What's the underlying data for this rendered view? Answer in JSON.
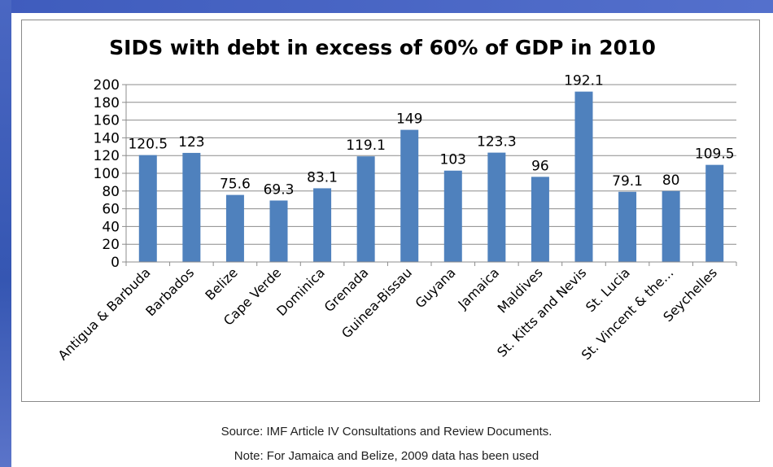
{
  "chart_data": {
    "type": "bar",
    "title": "SIDS with debt in excess of 60% of GDP in 2010",
    "categories": [
      "Antigua & Barbuda",
      "Barbados",
      "Belize",
      "Cape Verde",
      "Dominica",
      "Grenada",
      "Guinea-Bissau",
      "Guyana",
      "Jamaica",
      "Maldives",
      "St. Kitts and Nevis",
      "St. Lucia",
      "St. Vincent & the…",
      "Seychelles"
    ],
    "values": [
      120.5,
      123,
      75.6,
      69.3,
      83.1,
      119.1,
      149,
      103,
      123.3,
      96,
      192.1,
      79.1,
      80,
      109.5
    ],
    "value_labels": [
      "120.5",
      "123",
      "75.6",
      "69.3",
      "83.1",
      "119.1",
      "149",
      "103",
      "123.3",
      "96",
      "192.1",
      "79.1",
      "80",
      "109.5"
    ],
    "ylim": [
      0,
      200
    ],
    "yticks": [
      0,
      20,
      40,
      60,
      80,
      100,
      120,
      140,
      160,
      180,
      200
    ],
    "xlabel": "",
    "ylabel": "",
    "bar_color": "#4f81bd",
    "grid": true,
    "legend": "none"
  },
  "footer": {
    "source": "Source: IMF Article IV Consultations and Review Documents.",
    "note": "Note: For Jamaica and Belize, 2009 data has been used"
  }
}
